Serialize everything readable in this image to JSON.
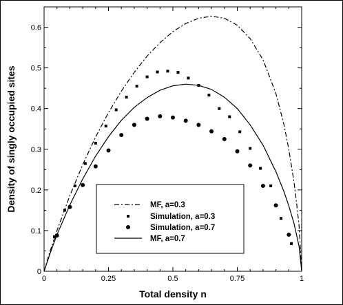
{
  "chart_data": {
    "type": "line",
    "title": "",
    "xlabel": "Total density n",
    "ylabel": "Density of singly occupied sites",
    "xlim": [
      0,
      1
    ],
    "ylim": [
      0,
      0.65
    ],
    "x_ticks": [
      0,
      0.25,
      0.5,
      0.75,
      1
    ],
    "x_tick_labels": [
      "0",
      "0.25",
      "0.5",
      "0.75",
      "1"
    ],
    "y_ticks": [
      0,
      0.1,
      0.2,
      0.3,
      0.4,
      0.5,
      0.6
    ],
    "y_tick_labels": [
      "0",
      "0.1",
      "0.2",
      "0.3",
      "0.4",
      "0.5",
      "0.6"
    ],
    "grid": false,
    "legend_position": "center-left",
    "series": [
      {
        "name": "MF, a=0.3",
        "kind": "line",
        "style": "dash-dot",
        "x": [
          0,
          0.02,
          0.05,
          0.1,
          0.15,
          0.2,
          0.25,
          0.3,
          0.35,
          0.4,
          0.45,
          0.5,
          0.55,
          0.6,
          0.65,
          0.7,
          0.75,
          0.8,
          0.85,
          0.9,
          0.93,
          0.95,
          0.97,
          0.98,
          0.99,
          1.0
        ],
        "y": [
          0,
          0.043,
          0.1,
          0.186,
          0.262,
          0.33,
          0.39,
          0.443,
          0.489,
          0.529,
          0.562,
          0.589,
          0.609,
          0.622,
          0.627,
          0.622,
          0.605,
          0.572,
          0.52,
          0.437,
          0.364,
          0.3,
          0.22,
          0.17,
          0.11,
          0
        ]
      },
      {
        "name": "Simulation, a=0.3",
        "kind": "markers",
        "marker": "square",
        "x": [
          0.04,
          0.08,
          0.12,
          0.16,
          0.2,
          0.24,
          0.28,
          0.32,
          0.36,
          0.4,
          0.44,
          0.48,
          0.52,
          0.56,
          0.6,
          0.64,
          0.68,
          0.72,
          0.76,
          0.8,
          0.84,
          0.88,
          0.92,
          0.96
        ],
        "y": [
          0.085,
          0.15,
          0.21,
          0.265,
          0.315,
          0.357,
          0.397,
          0.428,
          0.455,
          0.478,
          0.49,
          0.492,
          0.489,
          0.475,
          0.457,
          0.433,
          0.4,
          0.38,
          0.343,
          0.302,
          0.253,
          0.21,
          0.13,
          0.068
        ]
      },
      {
        "name": "Simulation, a=0.7",
        "kind": "markers",
        "marker": "circle",
        "x": [
          0.05,
          0.1,
          0.15,
          0.2,
          0.25,
          0.3,
          0.35,
          0.4,
          0.45,
          0.5,
          0.55,
          0.6,
          0.65,
          0.7,
          0.75,
          0.8,
          0.85,
          0.9,
          0.95
        ],
        "y": [
          0.088,
          0.158,
          0.212,
          0.258,
          0.297,
          0.335,
          0.36,
          0.375,
          0.381,
          0.378,
          0.37,
          0.36,
          0.344,
          0.325,
          0.295,
          0.26,
          0.21,
          0.162,
          0.09
        ]
      },
      {
        "name": "MF,  a=0.7",
        "kind": "line",
        "style": "solid",
        "x": [
          0,
          0.02,
          0.05,
          0.1,
          0.15,
          0.2,
          0.25,
          0.3,
          0.35,
          0.4,
          0.45,
          0.5,
          0.55,
          0.6,
          0.65,
          0.7,
          0.75,
          0.8,
          0.85,
          0.9,
          0.93,
          0.95,
          0.97,
          0.98,
          0.99,
          1.0
        ],
        "y": [
          0,
          0.038,
          0.09,
          0.163,
          0.227,
          0.283,
          0.331,
          0.371,
          0.403,
          0.427,
          0.445,
          0.456,
          0.46,
          0.457,
          0.447,
          0.428,
          0.4,
          0.36,
          0.31,
          0.245,
          0.198,
          0.161,
          0.118,
          0.09,
          0.06,
          0
        ]
      }
    ]
  }
}
